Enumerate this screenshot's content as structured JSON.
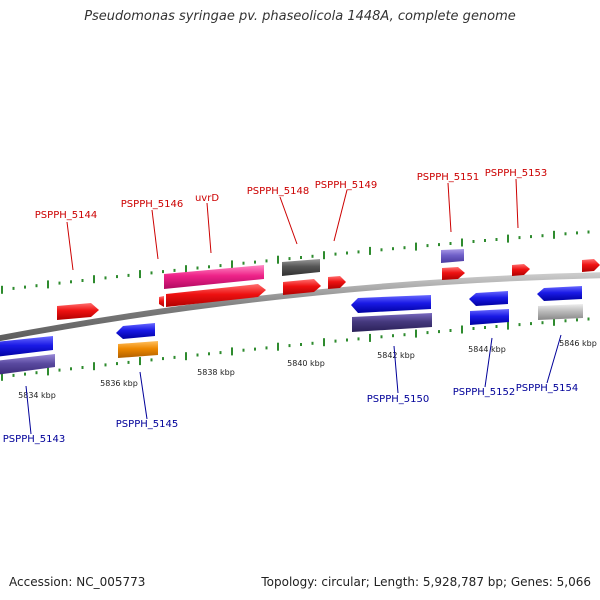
{
  "title": "Pseudomonas syringae pv. phaseolicola 1448A, complete genome",
  "accession_label": "Accession: NC_005773",
  "summary": "Topology: circular; Length: 5,928,787 bp; Genes: 5,066",
  "scale_labels": [
    "5834 kbp",
    "5836 kbp",
    "5838 kbp",
    "5840 kbp",
    "5842 kbp",
    "5844 kbp",
    "5846 kbp"
  ],
  "gene_labels_top": [
    "PSPPH_5144",
    "PSPPH_5146",
    "uvrD",
    "PSPPH_5148",
    "PSPPH_5149",
    "PSPPH_5151",
    "PSPPH_5153"
  ],
  "gene_labels_bottom": [
    "PSPPH_5143",
    "PSPPH_5145",
    "PSPPH_5150",
    "PSPPH_5152",
    "PSPPH_5154"
  ],
  "colors": {
    "label_top": "#cc0000",
    "label_bottom": "#000099",
    "tick": "#2e8b2e",
    "backbone": "#8c8c8c",
    "forward_gene": "#ee1111",
    "reverse_gene": "#1a1ae6",
    "magenta_gene": "#ee2288",
    "dark_gray_gene": "#555555",
    "orange_gene": "#ee8800",
    "light_gray_gene": "#bbbbbb",
    "slate_gene": "#5a4aa0"
  }
}
